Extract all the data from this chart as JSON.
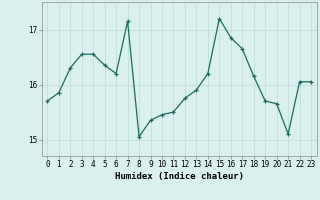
{
  "x": [
    0,
    1,
    2,
    3,
    4,
    5,
    6,
    7,
    8,
    9,
    10,
    11,
    12,
    13,
    14,
    15,
    16,
    17,
    18,
    19,
    20,
    21,
    22,
    23
  ],
  "y": [
    15.7,
    15.85,
    16.3,
    16.55,
    16.55,
    16.35,
    16.2,
    17.15,
    15.05,
    15.35,
    15.45,
    15.5,
    15.75,
    15.9,
    16.2,
    17.2,
    16.85,
    16.65,
    16.15,
    15.7,
    15.65,
    15.1,
    16.05,
    16.05
  ],
  "line_color": "#1a6b5a",
  "marker": "+",
  "markersize": 3,
  "linewidth": 0.9,
  "bg_color": "#d9f0ef",
  "grid_color": "#c0dedd",
  "xlabel": "Humidex (Indice chaleur)",
  "xlabel_fontsize": 6.5,
  "yticks": [
    15,
    16,
    17
  ],
  "xticks": [
    0,
    1,
    2,
    3,
    4,
    5,
    6,
    7,
    8,
    9,
    10,
    11,
    12,
    13,
    14,
    15,
    16,
    17,
    18,
    19,
    20,
    21,
    22,
    23
  ],
  "ylim": [
    14.7,
    17.5
  ],
  "xlim": [
    -0.5,
    23.5
  ],
  "tick_fontsize": 5.5
}
